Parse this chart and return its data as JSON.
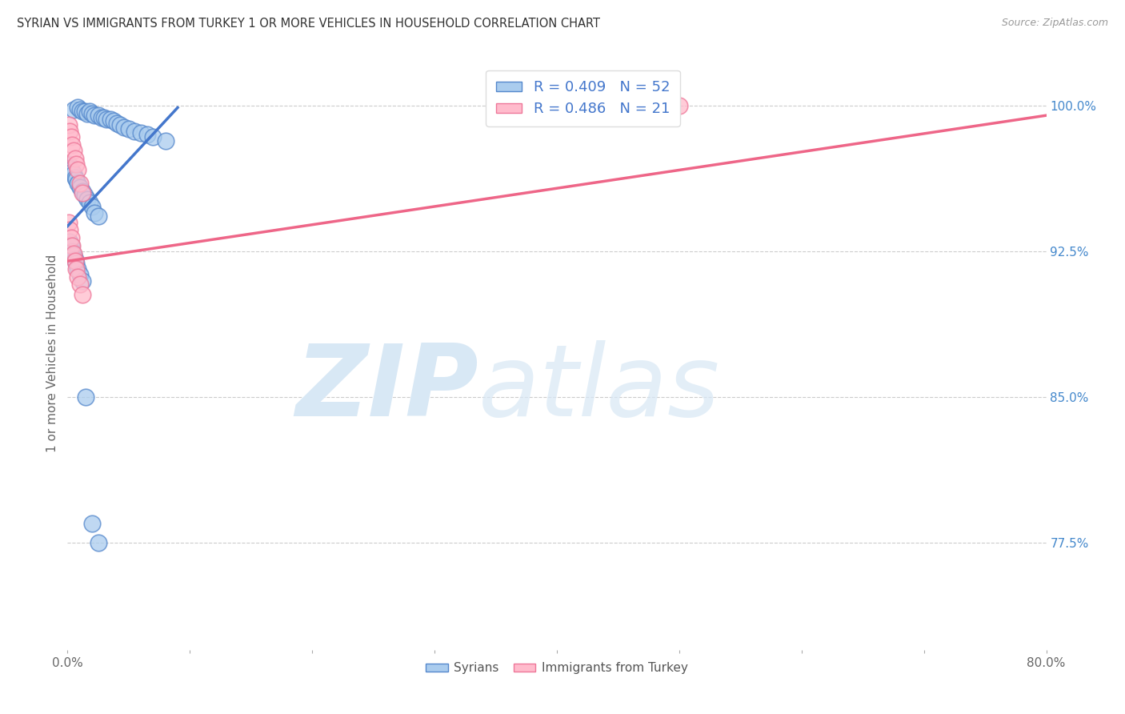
{
  "title": "SYRIAN VS IMMIGRANTS FROM TURKEY 1 OR MORE VEHICLES IN HOUSEHOLD CORRELATION CHART",
  "source": "Source: ZipAtlas.com",
  "ylabel": "1 or more Vehicles in Household",
  "legend_r1": "0.409",
  "legend_n1": "52",
  "legend_r2": "0.486",
  "legend_n2": "21",
  "blue_fill": "#AACCEE",
  "blue_edge": "#5588CC",
  "pink_fill": "#FFBBCC",
  "pink_edge": "#EE7799",
  "blue_line": "#4477CC",
  "pink_line": "#EE6688",
  "xmin": 0.0,
  "xmax": 0.8,
  "ymin": 0.72,
  "ymax": 1.025,
  "ytick_positions": [
    1.0,
    0.925,
    0.85,
    0.775
  ],
  "ytick_labels": [
    "100.0%",
    "92.5%",
    "85.0%",
    "77.5%"
  ],
  "background_color": "#FFFFFF",
  "watermark_zip": "ZIP",
  "watermark_atlas": "atlas",
  "watermark_color": "#D8E8F5",
  "grid_color": "#CCCCCC",
  "title_color": "#333333",
  "right_tick_color": "#4488CC",
  "blue_x": [
    0.005,
    0.008,
    0.01,
    0.012,
    0.014,
    0.016,
    0.018,
    0.02,
    0.022,
    0.025,
    0.028,
    0.03,
    0.032,
    0.035,
    0.038,
    0.04,
    0.043,
    0.046,
    0.05,
    0.055,
    0.06,
    0.065,
    0.07,
    0.08,
    0.001,
    0.002,
    0.003,
    0.004,
    0.005,
    0.006,
    0.007,
    0.008,
    0.01,
    0.012,
    0.014,
    0.016,
    0.018,
    0.02,
    0.022,
    0.025,
    0.002,
    0.003,
    0.004,
    0.005,
    0.006,
    0.007,
    0.008,
    0.01,
    0.012,
    0.015,
    0.02,
    0.025
  ],
  "blue_y": [
    0.998,
    0.999,
    0.998,
    0.997,
    0.997,
    0.996,
    0.997,
    0.996,
    0.995,
    0.995,
    0.994,
    0.994,
    0.993,
    0.993,
    0.992,
    0.991,
    0.99,
    0.989,
    0.988,
    0.987,
    0.986,
    0.985,
    0.984,
    0.982,
    0.97,
    0.968,
    0.967,
    0.966,
    0.965,
    0.963,
    0.962,
    0.96,
    0.958,
    0.956,
    0.954,
    0.952,
    0.95,
    0.948,
    0.945,
    0.943,
    0.93,
    0.928,
    0.925,
    0.923,
    0.921,
    0.919,
    0.916,
    0.913,
    0.91,
    0.85,
    0.785,
    0.775
  ],
  "pink_x": [
    0.001,
    0.002,
    0.003,
    0.004,
    0.005,
    0.006,
    0.007,
    0.008,
    0.01,
    0.012,
    0.001,
    0.002,
    0.003,
    0.004,
    0.005,
    0.006,
    0.007,
    0.008,
    0.01,
    0.012,
    0.5
  ],
  "pink_y": [
    0.99,
    0.987,
    0.984,
    0.98,
    0.977,
    0.973,
    0.97,
    0.967,
    0.96,
    0.955,
    0.94,
    0.936,
    0.932,
    0.928,
    0.924,
    0.92,
    0.916,
    0.912,
    0.908,
    0.903,
    1.0
  ],
  "blue_line_x": [
    0.0,
    0.09
  ],
  "blue_line_y": [
    0.938,
    0.999
  ],
  "pink_line_x": [
    0.0,
    0.8
  ],
  "pink_line_y": [
    0.92,
    0.995
  ]
}
